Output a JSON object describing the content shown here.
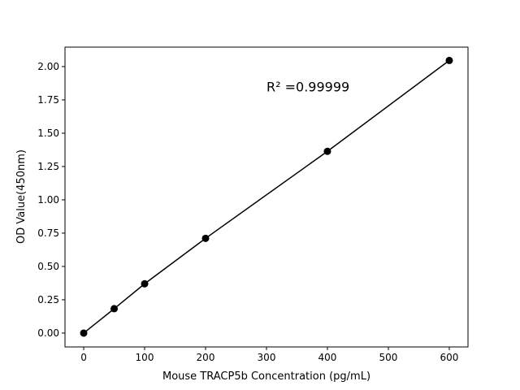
{
  "chart_data": {
    "type": "scatter",
    "title": "",
    "xlabel": "Mouse TRACP5b Concentration (pg/mL)",
    "ylabel": "OD Value(450nm)",
    "xlim": [
      -30.7,
      630.7
    ],
    "ylim": [
      -0.104,
      2.146
    ],
    "xticks": [
      0,
      100,
      200,
      300,
      400,
      500,
      600
    ],
    "xtick_labels": [
      "0",
      "100",
      "200",
      "300",
      "400",
      "500",
      "600"
    ],
    "yticks": [
      0,
      0.25,
      0.5,
      0.75,
      1.0,
      1.25,
      1.5,
      1.75,
      2.0
    ],
    "ytick_labels": [
      "0.00",
      "0.25",
      "0.50",
      "0.75",
      "1.00",
      "1.25",
      "1.50",
      "1.75",
      "2.00"
    ],
    "grid": false,
    "points": {
      "x": [
        0,
        50,
        100,
        200,
        400,
        600
      ],
      "y": [
        0.0,
        0.183,
        0.37,
        0.711,
        1.364,
        2.046
      ]
    },
    "fit_line": true,
    "annotation": {
      "text": "R² =0.99999",
      "x": 300,
      "y": 1.85
    },
    "colors": {
      "points": "#000000",
      "line": "#000000"
    }
  }
}
